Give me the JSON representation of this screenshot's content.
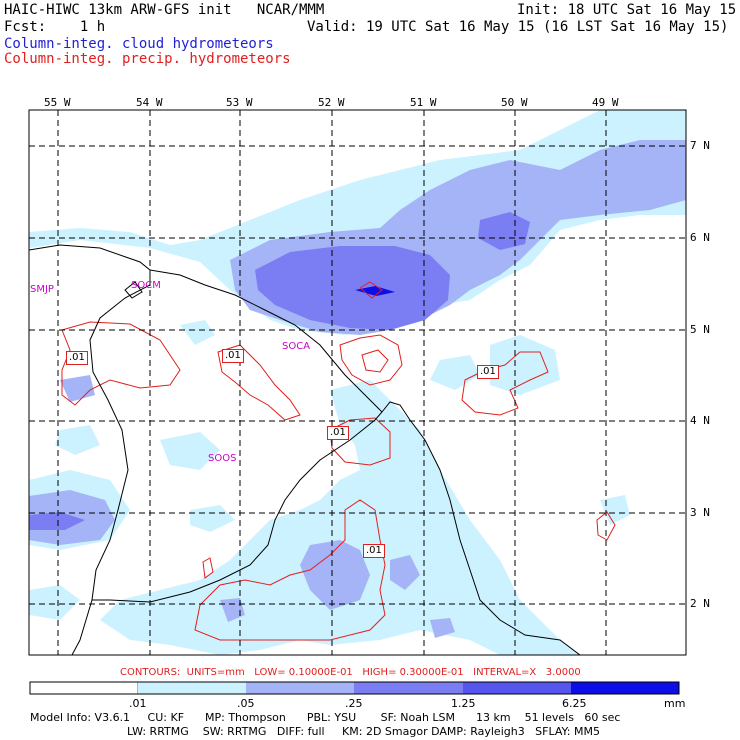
{
  "header": {
    "title": "HAIC-HIWC 13km ARW-GFS init   NCAR/MMM",
    "init": "Init: 18 UTC Sat 16 May 15",
    "fcst": "Fcst:    1 h",
    "valid": "Valid: 19 UTC Sat 16 May 15 (16 LST Sat 16 May 15)",
    "legend_cloud": "Column-integ. cloud hydrometeors",
    "legend_precip": "Column-integ. precip. hydrometeors"
  },
  "map": {
    "lon_labels": [
      "55 W",
      "54 W",
      "53 W",
      "52 W",
      "51 W",
      "50 W",
      "49 W"
    ],
    "lat_labels": [
      "7 N",
      "6 N",
      "5 N",
      "4 N",
      "3 N",
      "2 N"
    ],
    "stations": [
      "SMJP",
      "SOCM",
      "SOCA",
      "SOOS"
    ],
    "contour_labels": [
      ".01",
      ".01",
      ".01",
      ".01",
      ".01"
    ]
  },
  "contours_info": "CONTOURS:  UNITS=mm   LOW= 0.10000E-01   HIGH= 0.30000E-01   INTERVAL=X   3.0000",
  "colorbar": {
    "labels": [
      ".01",
      ".05",
      ".25",
      "1.25",
      "6.25"
    ],
    "unit": "mm",
    "colors": [
      "#ffffff",
      "#ccf2ff",
      "#a5b4f7",
      "#7b7ef2",
      "#5656ee",
      "#0d0de8"
    ]
  },
  "model_info": {
    "line1": "Model Info: V3.6.1     CU: KF      MP: Thompson      PBL: YSU       SF: Noah LSM      13 km    51 levels   60 sec",
    "line2": "LW: RRTMG    SW: RRTMG   DIFF: full     KM: 2D Smagor DAMP: Rayleigh3   SFLAY: MM5"
  }
}
